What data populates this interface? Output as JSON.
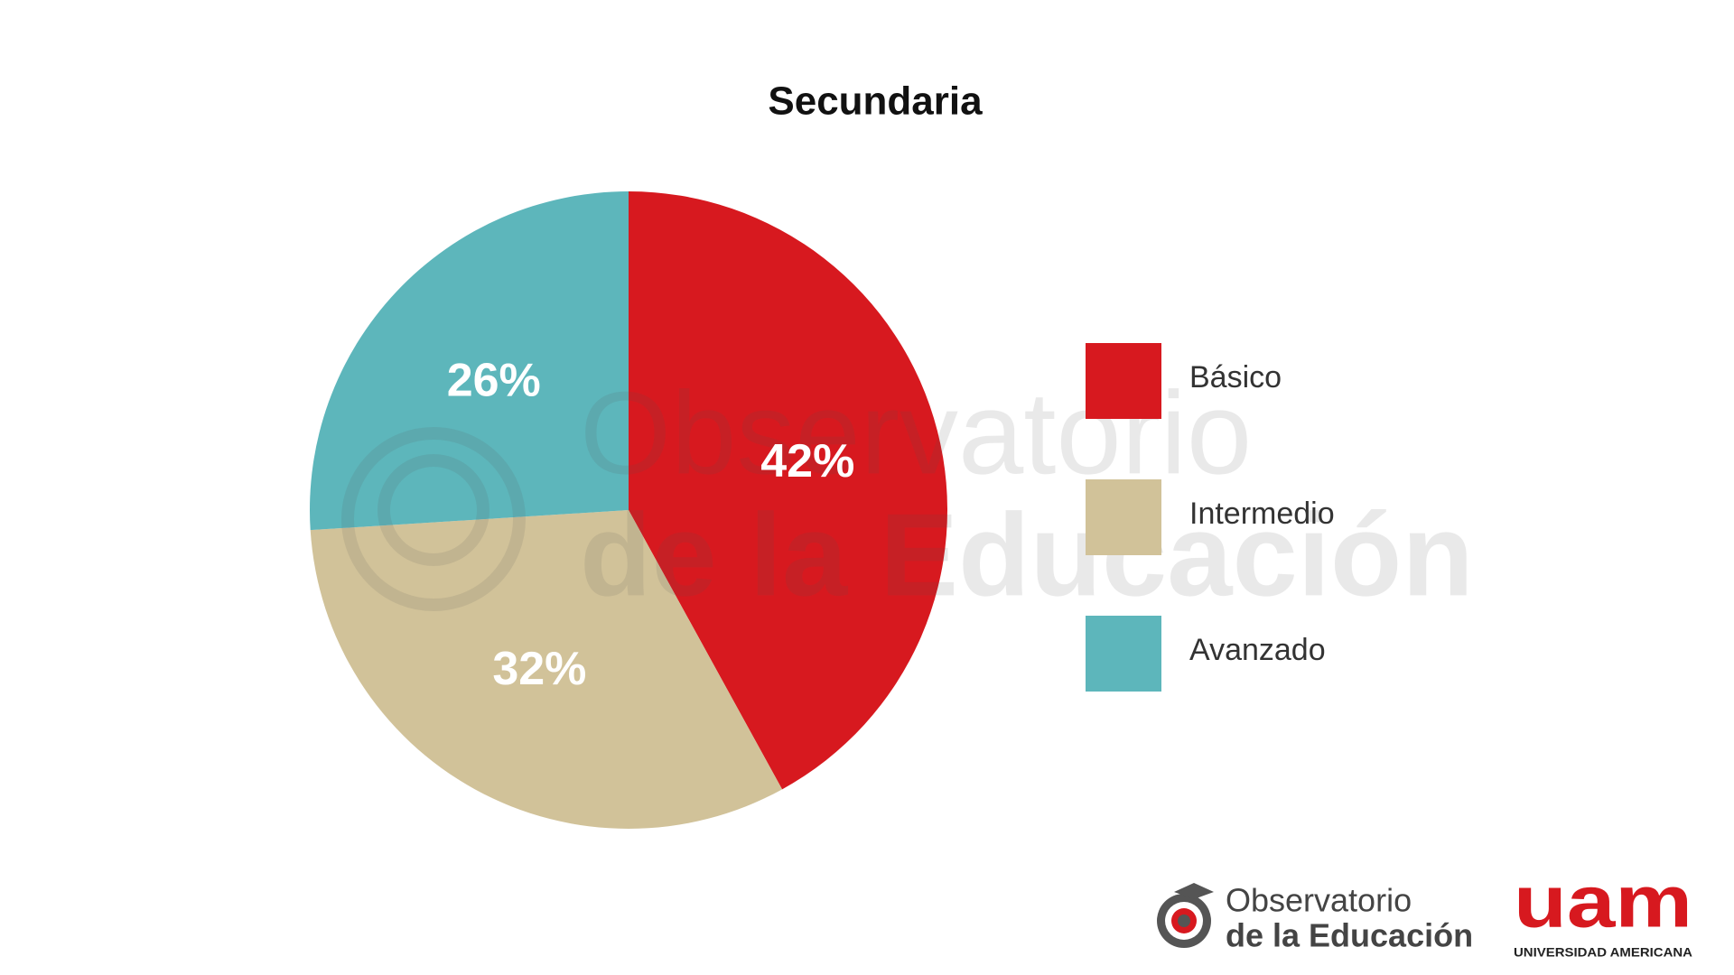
{
  "chart_data": {
    "type": "pie",
    "title": "Secundaria",
    "categories": [
      "Básico",
      "Intermedio",
      "Avanzado"
    ],
    "values": [
      42,
      32,
      26
    ],
    "value_labels": [
      "42%",
      "32%",
      "26%"
    ],
    "colors": [
      "#d7191f",
      "#d1c299",
      "#5db6bb"
    ],
    "legend": "right"
  },
  "logos": {
    "observatorio_line1": "Observatorio",
    "observatorio_line2": "de la Educación",
    "uam": "uam",
    "uam_subtitle": "UNIVERSIDAD AMERICANA"
  }
}
